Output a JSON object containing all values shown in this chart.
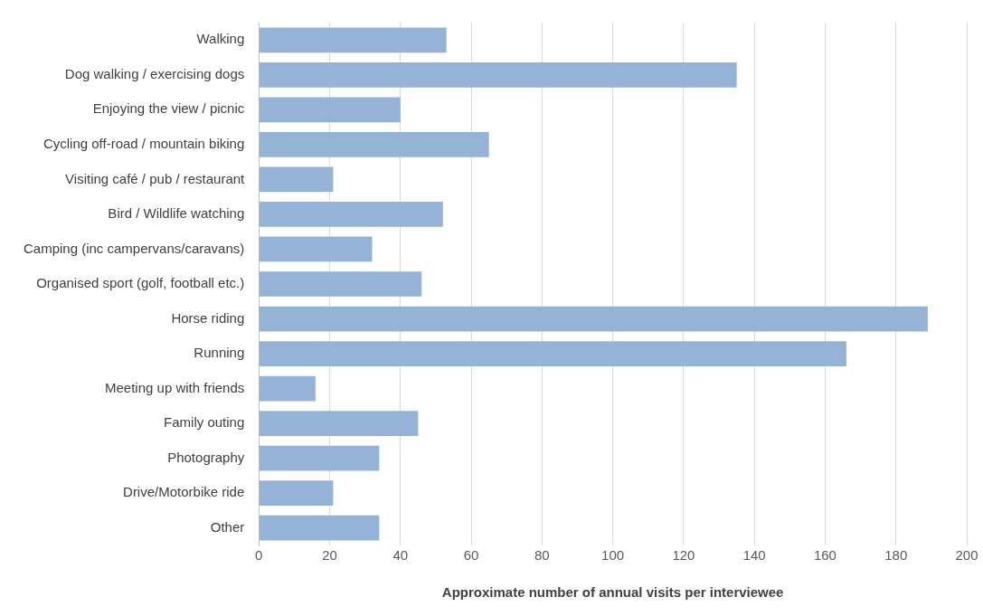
{
  "chart_data": {
    "type": "bar",
    "orientation": "horizontal",
    "xlabel": "Approximate number of annual visits per interviewee",
    "categories": [
      "Walking",
      "Dog walking / exercising dogs",
      "Enjoying the view / picnic",
      "Cycling off-road / mountain biking",
      "Visiting café / pub / restaurant",
      "Bird / Wildlife watching",
      "Camping (inc campervans/caravans)",
      "Organised sport (golf, football etc.)",
      "Horse riding",
      "Running",
      "Meeting up with friends",
      "Family outing",
      "Photography",
      "Drive/Motorbike ride",
      "Other"
    ],
    "values": [
      53,
      135,
      40,
      65,
      21,
      52,
      32,
      46,
      189,
      166,
      16,
      45,
      34,
      21,
      34
    ],
    "color": "#95b3d7",
    "xlim": [
      0,
      200
    ],
    "xticks": [
      0,
      20,
      40,
      60,
      80,
      100,
      120,
      140,
      160,
      180,
      200
    ],
    "grid": "x",
    "legend": false
  }
}
